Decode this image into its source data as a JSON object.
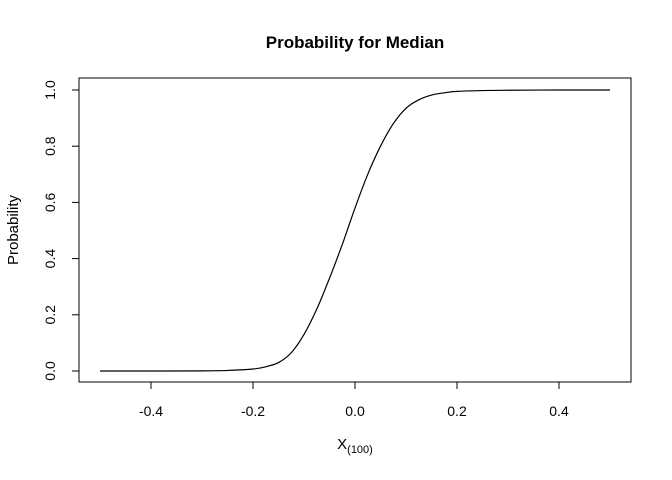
{
  "chart_data": {
    "type": "line",
    "title": "Probability for Median",
    "xlabel_main": "X",
    "xlabel_subscript": "(100)",
    "ylabel": "Probability",
    "xlim": [
      -0.5,
      0.5
    ],
    "ylim": [
      0.0,
      1.0
    ],
    "x_ticks": [
      -0.4,
      -0.2,
      0.0,
      0.2,
      0.4
    ],
    "x_tick_labels": [
      "-0.4",
      "-0.2",
      "0.0",
      "0.2",
      "0.4"
    ],
    "y_ticks": [
      0.0,
      0.2,
      0.4,
      0.6,
      0.8,
      1.0
    ],
    "y_tick_labels": [
      "0.0",
      "0.2",
      "0.4",
      "0.6",
      "0.8",
      "1.0"
    ],
    "grid": false,
    "legend": "none",
    "line_color": "#000000",
    "series": [
      {
        "x": [
          -0.5,
          -0.4,
          -0.3,
          -0.25,
          -0.2,
          -0.175,
          -0.15,
          -0.125,
          -0.1,
          -0.075,
          -0.05,
          -0.025,
          0.0,
          0.025,
          0.05,
          0.075,
          0.1,
          0.125,
          0.15,
          0.175,
          0.2,
          0.25,
          0.3,
          0.4,
          0.5
        ],
        "y": [
          0.0,
          0.0,
          0.0005,
          0.002,
          0.007,
          0.015,
          0.03,
          0.065,
          0.13,
          0.22,
          0.33,
          0.45,
          0.58,
          0.7,
          0.8,
          0.88,
          0.935,
          0.965,
          0.982,
          0.99,
          0.995,
          0.998,
          0.999,
          1.0,
          1.0
        ]
      }
    ]
  }
}
